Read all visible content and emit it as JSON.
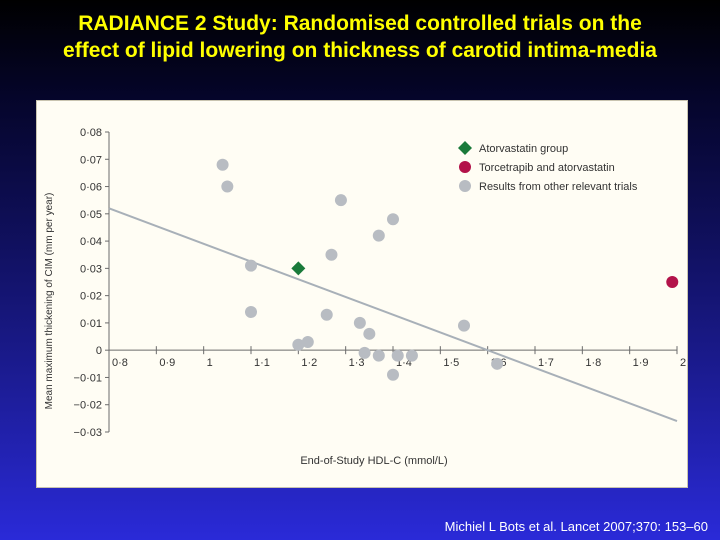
{
  "slide": {
    "title_line1": "RADIANCE 2 Study: Randomised controlled trials on the",
    "title_line2": "effect of lipid lowering on thickness of carotid intima-media",
    "citation": "Michiel L Bots et al. Lancet 2007;370: 153–60"
  },
  "chart_data": {
    "type": "scatter",
    "xlabel": "End-of-Study HDL-C (mmol/L)",
    "ylabel": "Mean maximum thickening of CIM (mm per year)",
    "xlim": [
      0.8,
      2.0
    ],
    "ylim": [
      -0.03,
      0.08
    ],
    "xticks": [
      0.8,
      0.9,
      1.0,
      1.1,
      1.2,
      1.3,
      1.4,
      1.5,
      1.6,
      1.7,
      1.8,
      1.9,
      2.0
    ],
    "xtick_labels": [
      "0·8",
      "0·9",
      "1",
      "1·1",
      "1·2",
      "1·3",
      "1·4",
      "1·5",
      "1·6",
      "1·7",
      "1·8",
      "1·9",
      "2"
    ],
    "yticks": [
      -0.03,
      -0.02,
      -0.01,
      0,
      0.01,
      0.02,
      0.03,
      0.04,
      0.05,
      0.06,
      0.07,
      0.08
    ],
    "ytick_labels": [
      "−0·03",
      "−0·02",
      "−0·01",
      "0",
      "0·01",
      "0·02",
      "0·03",
      "0·04",
      "0·05",
      "0·06",
      "0·07",
      "0·08"
    ],
    "legend_position": "top-right",
    "series": [
      {
        "name": "Atorvastatin group",
        "marker": "diamond",
        "color": "#1a7a3a",
        "points": [
          [
            1.2,
            0.03
          ]
        ]
      },
      {
        "name": "Torcetrapib and atorvastatin",
        "marker": "circle",
        "color": "#b3134a",
        "points": [
          [
            1.99,
            0.025
          ]
        ]
      },
      {
        "name": "Results from other relevant trials",
        "marker": "circle",
        "color": "#b8bcc2",
        "points": [
          [
            1.04,
            0.068
          ],
          [
            1.05,
            0.06
          ],
          [
            1.1,
            0.031
          ],
          [
            1.1,
            0.014
          ],
          [
            1.2,
            0.002
          ],
          [
            1.22,
            0.003
          ],
          [
            1.26,
            0.013
          ],
          [
            1.27,
            0.035
          ],
          [
            1.29,
            0.055
          ],
          [
            1.33,
            0.01
          ],
          [
            1.34,
            -0.001
          ],
          [
            1.35,
            0.006
          ],
          [
            1.37,
            0.042
          ],
          [
            1.37,
            -0.002
          ],
          [
            1.4,
            0.048
          ],
          [
            1.4,
            -0.009
          ],
          [
            1.41,
            -0.002
          ],
          [
            1.44,
            -0.002
          ],
          [
            1.55,
            0.009
          ],
          [
            1.62,
            -0.005
          ]
        ]
      }
    ],
    "trend_line": {
      "color": "#a8b0b8",
      "points": [
        [
          0.8,
          0.052
        ],
        [
          2.0,
          -0.026
        ]
      ]
    }
  }
}
